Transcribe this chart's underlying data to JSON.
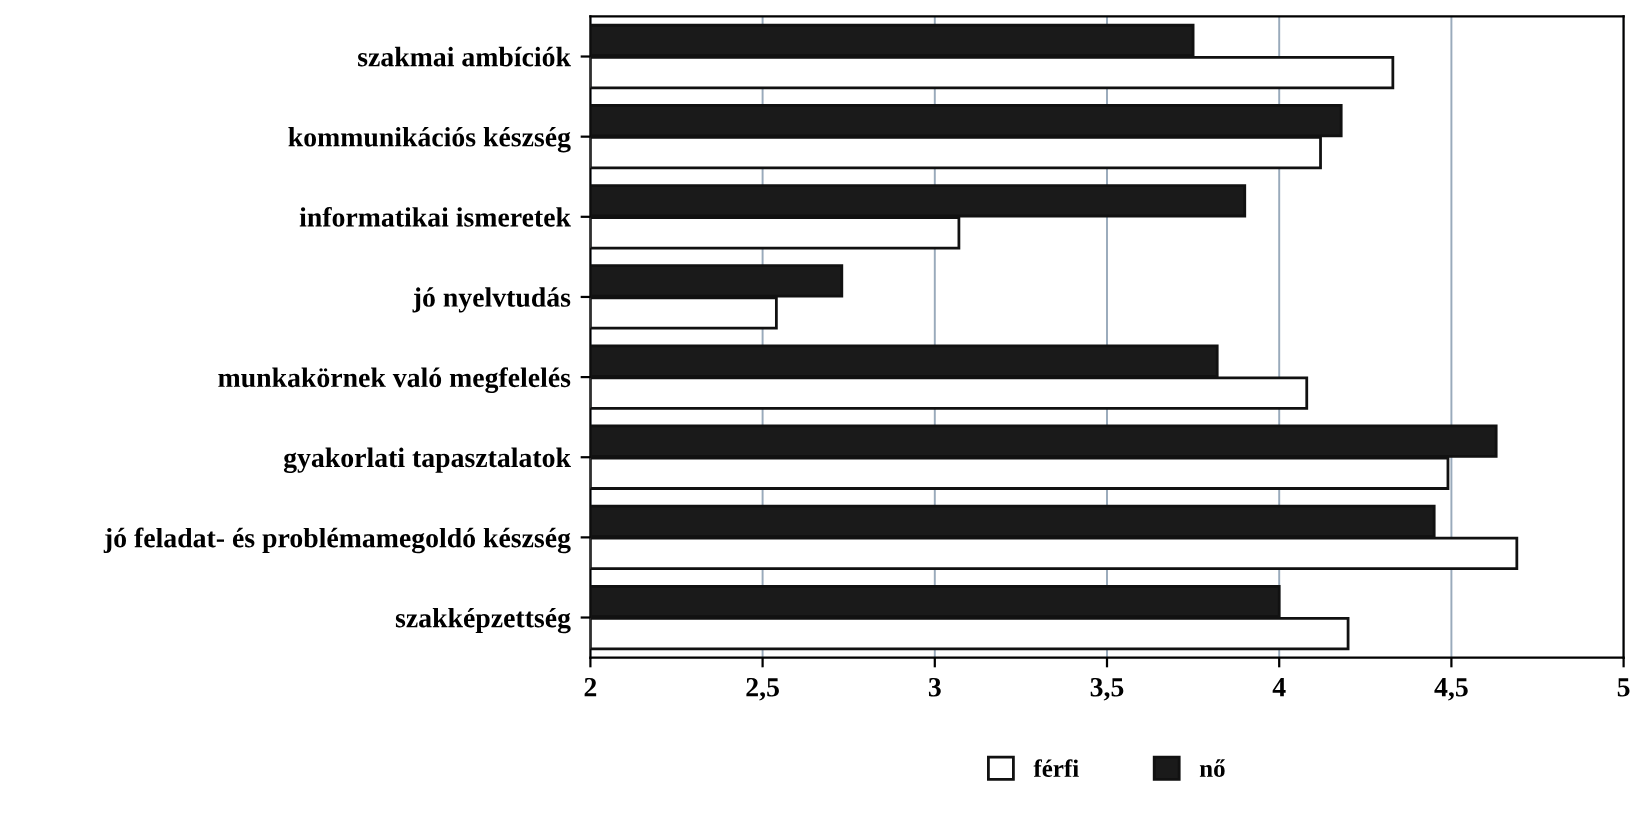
{
  "chart_data": {
    "type": "bar",
    "orientation": "horizontal",
    "categories": [
      "szakmai ambíciók",
      "kommunikációs készség",
      "informatikai ismeretek",
      "jó nyelvtudás",
      "munkakörnek való megfelelés",
      "gyakorlati tapasztalatok",
      "jó feladat- és problémamegoldó készség",
      "szakképzettség"
    ],
    "series": [
      {
        "name": "férfi",
        "color": "#ffffff",
        "values": [
          4.33,
          4.12,
          3.07,
          2.54,
          4.08,
          4.49,
          4.69,
          4.2
        ]
      },
      {
        "name": "nő",
        "color": "#1a1a1a",
        "values": [
          3.75,
          4.18,
          3.9,
          2.73,
          3.82,
          4.63,
          4.45,
          4.0
        ]
      }
    ],
    "xlim": [
      2,
      5
    ],
    "xticks": [
      2,
      {
        "value": 2.5,
        "label": "2,5"
      },
      3,
      {
        "value": 3.5,
        "label": "3,5"
      },
      4,
      {
        "value": 4.5,
        "label": "4,5"
      },
      5
    ],
    "grid": "x",
    "legend": "bottom"
  }
}
